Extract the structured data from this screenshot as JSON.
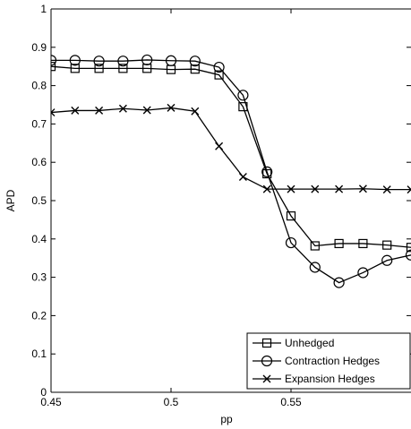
{
  "chart_data": {
    "type": "line",
    "xlabel": "pp",
    "ylabel": "APD",
    "xlim": [
      0.45,
      0.6
    ],
    "ylim": [
      0,
      1
    ],
    "x_ticks": [
      0.45,
      0.5,
      0.55
    ],
    "x_tick_labels": [
      "0.45",
      "0.5",
      "0.55"
    ],
    "y_ticks": [
      0,
      0.1,
      0.2,
      0.3,
      0.4,
      0.5,
      0.6,
      0.7,
      0.8,
      0.9,
      1
    ],
    "y_tick_labels": [
      "0",
      "0.1",
      "0.2",
      "0.3",
      "0.4",
      "0.5",
      "0.6",
      "0.7",
      "0.8",
      "0.9",
      "1"
    ],
    "grid": false,
    "legend_position": "bottom-right",
    "x": [
      0.45,
      0.46,
      0.47,
      0.48,
      0.49,
      0.5,
      0.51,
      0.52,
      0.53,
      0.54,
      0.55,
      0.56,
      0.57,
      0.58,
      0.59,
      0.6
    ],
    "series": [
      {
        "name": "Unhedged",
        "marker": "square",
        "values": [
          0.85,
          0.845,
          0.845,
          0.845,
          0.845,
          0.842,
          0.843,
          0.828,
          0.745,
          0.57,
          0.46,
          0.382,
          0.388,
          0.388,
          0.384,
          0.378
        ]
      },
      {
        "name": "Contraction Hedges",
        "marker": "circle",
        "values": [
          0.866,
          0.866,
          0.864,
          0.864,
          0.867,
          0.865,
          0.864,
          0.848,
          0.775,
          0.575,
          0.39,
          0.326,
          0.286,
          0.312,
          0.344,
          0.358
        ]
      },
      {
        "name": "Expansion Hedges",
        "marker": "x",
        "values": [
          0.73,
          0.735,
          0.735,
          0.74,
          0.736,
          0.742,
          0.733,
          0.642,
          0.562,
          0.53,
          0.53,
          0.53,
          0.53,
          0.531,
          0.529,
          0.529
        ]
      }
    ]
  }
}
